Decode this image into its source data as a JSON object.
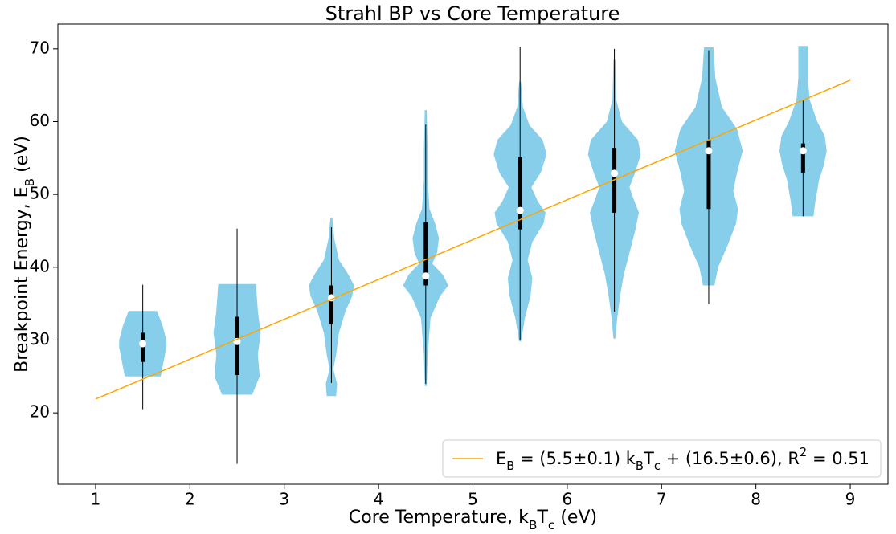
{
  "chart_data": {
    "type": "violin",
    "title": "Strahl BP vs Core Temperature",
    "xlabel": [
      {
        "text": "Core Temperature, k"
      },
      {
        "text": "B",
        "script": "sub"
      },
      {
        "text": "T"
      },
      {
        "text": "c",
        "script": "sub"
      },
      {
        "text": " (eV)"
      }
    ],
    "ylabel": [
      {
        "text": "Breakpoint Energy, E"
      },
      {
        "text": "B",
        "script": "sub"
      },
      {
        "text": " (eV)"
      }
    ],
    "xlim": [
      0.6,
      9.4
    ],
    "ylim": [
      10.2,
      73.4
    ],
    "xticks": [
      1,
      2,
      3,
      4,
      5,
      6,
      7,
      8,
      9
    ],
    "yticks": [
      20,
      30,
      40,
      50,
      60,
      70
    ],
    "grid": false,
    "color": "#87ceeb",
    "violins": [
      {
        "position": 1.5,
        "kde_y": [
          25,
          27,
          29,
          30,
          32,
          34
        ],
        "kde_width": [
          0.19,
          0.22,
          0.25,
          0.25,
          0.21,
          0.15
        ],
        "whisker": [
          20.5,
          37.6
        ],
        "quartiles": [
          27,
          29.5,
          31
        ]
      },
      {
        "position": 2.5,
        "kde_y": [
          22.5,
          25,
          28,
          31,
          34,
          37.7
        ],
        "kde_width": [
          0.16,
          0.24,
          0.22,
          0.25,
          0.22,
          0.2
        ],
        "whisker": [
          13,
          45.3
        ],
        "quartiles": [
          25.2,
          29.8,
          33.2
        ]
      },
      {
        "position": 3.5,
        "kde_y": [
          22.3,
          24,
          26,
          28,
          31,
          34,
          36,
          37.5,
          39,
          41,
          44,
          46.8
        ],
        "kde_width": [
          0.05,
          0.06,
          0.02,
          0.05,
          0.08,
          0.15,
          0.22,
          0.24,
          0.18,
          0.08,
          0.03,
          0.01
        ],
        "whisker": [
          24.1,
          45.5
        ],
        "quartiles": [
          32.2,
          35.8,
          37.5
        ]
      },
      {
        "position": 4.5,
        "kde_y": [
          23.7,
          28,
          33,
          36,
          37.5,
          39,
          40.5,
          42,
          44,
          46,
          48,
          52,
          56,
          61.6
        ],
        "kde_width": [
          0.01,
          0.02,
          0.05,
          0.15,
          0.24,
          0.18,
          0.07,
          0.12,
          0.14,
          0.1,
          0.04,
          0.02,
          0.02,
          0.01
        ],
        "whisker": [
          24,
          59.6
        ],
        "quartiles": [
          37.5,
          38.8,
          46.2
        ]
      },
      {
        "position": 5.5,
        "kde_y": [
          29.8,
          33,
          36,
          38.5,
          41,
          43.5,
          46,
          47.5,
          49,
          51,
          53,
          55.5,
          57.5,
          59.5,
          62,
          65.5
        ],
        "kde_width": [
          0.01,
          0.05,
          0.11,
          0.13,
          0.08,
          0.13,
          0.25,
          0.27,
          0.19,
          0.12,
          0.22,
          0.28,
          0.24,
          0.1,
          0.03,
          0.01
        ],
        "whisker": [
          30,
          70.3
        ],
        "quartiles": [
          45.2,
          47.8,
          55.2
        ]
      },
      {
        "position": 6.5,
        "kde_y": [
          30.2,
          33,
          36,
          39,
          42,
          45,
          47.5,
          49.5,
          51,
          53,
          55.5,
          57.5,
          60,
          63,
          68.5
        ],
        "kde_width": [
          0.01,
          0.03,
          0.06,
          0.1,
          0.16,
          0.22,
          0.26,
          0.2,
          0.16,
          0.22,
          0.28,
          0.25,
          0.08,
          0.02,
          0.01
        ],
        "whisker": [
          33.9,
          70
        ],
        "quartiles": [
          47.5,
          52.9,
          56.4
        ]
      },
      {
        "position": 7.5,
        "kde_y": [
          37.5,
          40,
          43,
          46,
          48,
          50.5,
          53,
          56,
          59,
          62,
          66,
          70.2
        ],
        "kde_width": [
          0.06,
          0.1,
          0.2,
          0.29,
          0.31,
          0.26,
          0.3,
          0.36,
          0.3,
          0.14,
          0.07,
          0.05
        ],
        "whisker": [
          34.9,
          69.8
        ],
        "quartiles": [
          48,
          56,
          57.5
        ]
      },
      {
        "position": 8.5,
        "kde_y": [
          47,
          49,
          52,
          54,
          56,
          58,
          60,
          63,
          66,
          70.4
        ],
        "kde_width": [
          0.11,
          0.13,
          0.17,
          0.22,
          0.25,
          0.23,
          0.15,
          0.07,
          0.05,
          0.05
        ],
        "whisker": [
          47,
          63
        ],
        "quartiles": [
          53,
          56,
          57
        ]
      }
    ],
    "fit": {
      "name": [
        {
          "text": "E"
        },
        {
          "text": "B",
          "script": "sub"
        },
        {
          "text": " = (5.5±0.1) k"
        },
        {
          "text": "B",
          "script": "sub"
        },
        {
          "text": "T"
        },
        {
          "text": "c",
          "script": "sub"
        },
        {
          "text": " + (16.5±0.6), R"
        },
        {
          "text": "2",
          "script": "super"
        },
        {
          "text": " = 0.51"
        }
      ],
      "color": "#ffa500",
      "x": [
        1,
        9
      ],
      "y": [
        21.9,
        65.7
      ]
    },
    "legend": "lower right"
  }
}
